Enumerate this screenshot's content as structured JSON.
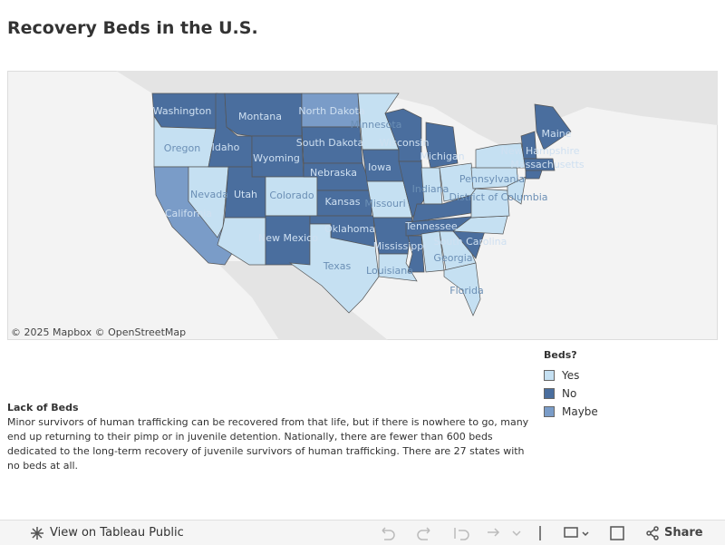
{
  "header": {
    "title": "Recovery Beds in the U.S."
  },
  "map": {
    "attribution": "© 2025 Mapbox  © OpenStreetMap",
    "regions": [
      {
        "label": "Washington",
        "status": "No"
      },
      {
        "label": "Oregon",
        "status": "Yes"
      },
      {
        "label": "California",
        "status": "Maybe"
      },
      {
        "label": "Nevada",
        "status": "Yes"
      },
      {
        "label": "Idaho",
        "status": "No"
      },
      {
        "label": "Montana",
        "status": "No"
      },
      {
        "label": "Wyoming",
        "status": "No"
      },
      {
        "label": "Utah",
        "status": "No"
      },
      {
        "label": "Colorado",
        "status": "Yes"
      },
      {
        "label": null,
        "status": "Yes"
      },
      {
        "label": "New Mexico",
        "status": "No"
      },
      {
        "label": "North Dakota",
        "status": "Maybe"
      },
      {
        "label": "South Dakota",
        "status": "No"
      },
      {
        "label": "Nebraska",
        "status": "No"
      },
      {
        "label": "Kansas",
        "status": "No"
      },
      {
        "label": "Oklahoma",
        "status": "No"
      },
      {
        "label": "Texas",
        "status": "Yes"
      },
      {
        "label": "Minnesota",
        "status": "Yes"
      },
      {
        "label": "Iowa",
        "status": "No"
      },
      {
        "label": "Missouri",
        "status": "Yes"
      },
      {
        "label": null,
        "status": "No"
      },
      {
        "label": "Louisiana",
        "status": "Yes"
      },
      {
        "label": "Wisconsin",
        "status": "No"
      },
      {
        "label": null,
        "status": "No"
      },
      {
        "label": "Michigan",
        "status": "No"
      },
      {
        "label": "Indiana",
        "status": "Yes"
      },
      {
        "label": null,
        "status": "Yes"
      },
      {
        "label": null,
        "status": "No"
      },
      {
        "label": "Tennessee",
        "status": "No"
      },
      {
        "label": "Mississippi",
        "status": "No"
      },
      {
        "label": null,
        "status": "Yes"
      },
      {
        "label": "Georgia",
        "status": "Yes"
      },
      {
        "label": "Florida",
        "status": "Yes"
      },
      {
        "label": "South Carolina",
        "status": "No"
      },
      {
        "label": null,
        "status": "Yes"
      },
      {
        "label": null,
        "status": "Yes"
      },
      {
        "label": "Pennsylvania",
        "status": "Yes"
      },
      {
        "label": null,
        "status": "Yes"
      },
      {
        "label": "District of Columbia",
        "status": "Yes"
      },
      {
        "label": "New Hampshire",
        "status": "No"
      },
      {
        "label": "Maine",
        "status": "No"
      },
      {
        "label": "Massachusetts",
        "status": "No"
      },
      {
        "label": null,
        "status": "No"
      }
    ]
  },
  "legend": {
    "title": "Beds?",
    "items": [
      {
        "label": "Yes",
        "color": "#c5e0f2"
      },
      {
        "label": "No",
        "color": "#4a6e9e"
      },
      {
        "label": "Maybe",
        "color": "#7a9cc8"
      }
    ]
  },
  "note": {
    "title": "Lack of Beds",
    "body": "Minor survivors of human trafficking can be recovered from that life, but if there is nowhere to go, many end up returning to their pimp or in juvenile detention. Nationally, there are fewer than 600 beds dedicated to the long-term recovery of juvenile survivors of human trafficking. There are 27 states with no beds at all."
  },
  "toolbar": {
    "view": "View on Tableau Public",
    "share": "Share"
  }
}
